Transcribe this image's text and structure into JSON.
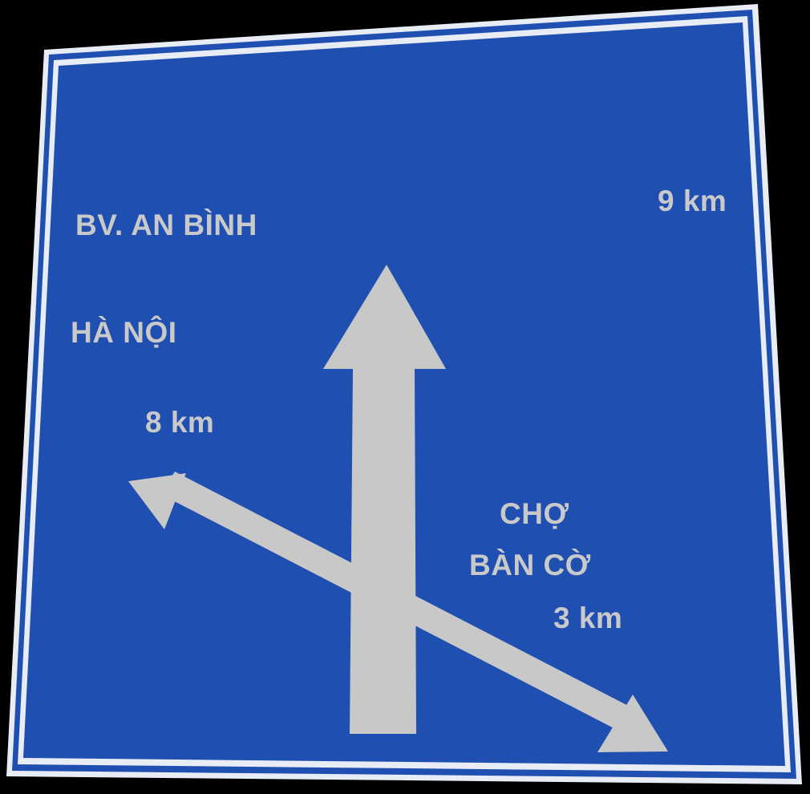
{
  "colors": {
    "sign_blue": "#1f4fb0",
    "border_white": "#e8ecf5",
    "arrow_gray": "#c8c8c8",
    "text_gray": "#c9c9c9",
    "background": "#000000"
  },
  "sign": {
    "destinations": [
      {
        "name": "BV. AN BÌNH",
        "distance": "9 km",
        "direction": "straight"
      },
      {
        "name": "HÀ NỘI",
        "distance": "8 km",
        "direction": "left"
      },
      {
        "name_line1": "CHỢ",
        "name_line2": "BÀN CỜ",
        "distance": "3 km",
        "direction": "right"
      }
    ]
  }
}
